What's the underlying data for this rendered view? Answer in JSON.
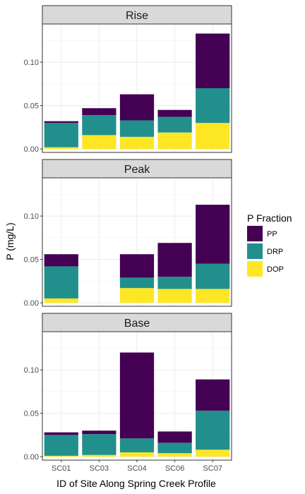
{
  "chart_data": {
    "type": "bar",
    "stacked": true,
    "xlabel": "ID of Site Along Spring Creek Profile",
    "ylabel": "P (mg/L)",
    "categories": [
      "SC01",
      "SC03",
      "SC04",
      "SC06",
      "SC07"
    ],
    "ylim": [
      -0.004,
      0.144
    ],
    "yticks": [
      0.0,
      0.05,
      0.1
    ],
    "ytick_labels": [
      "0.00",
      "0.05",
      "0.10"
    ],
    "grid": true,
    "legend": {
      "title": "P Fraction",
      "placement": "right",
      "entries": [
        "PP",
        "DRP",
        "DOP"
      ]
    },
    "colors": {
      "PP": "#440154",
      "DRP": "#21908C",
      "DOP": "#FDE725"
    },
    "stack_order_bottom_to_top": [
      "DOP",
      "DRP",
      "PP"
    ],
    "panels": [
      {
        "label": "Rise",
        "series": [
          {
            "name": "PP",
            "values": [
              0.002,
              0.008,
              0.03,
              0.008,
              0.063
            ]
          },
          {
            "name": "DRP",
            "values": [
              0.028,
              0.023,
              0.019,
              0.018,
              0.04
            ]
          },
          {
            "name": "DOP",
            "values": [
              0.002,
              0.016,
              0.014,
              0.019,
              0.03
            ]
          }
        ]
      },
      {
        "label": "Peak",
        "series": [
          {
            "name": "PP",
            "values": [
              0.014,
              null,
              0.027,
              0.039,
              0.068
            ]
          },
          {
            "name": "DRP",
            "values": [
              0.037,
              null,
              0.012,
              0.014,
              0.029
            ]
          },
          {
            "name": "DOP",
            "values": [
              0.005,
              null,
              0.017,
              0.016,
              0.016
            ]
          }
        ]
      },
      {
        "label": "Base",
        "series": [
          {
            "name": "PP",
            "values": [
              0.003,
              0.004,
              0.099,
              0.013,
              0.036
            ]
          },
          {
            "name": "DRP",
            "values": [
              0.024,
              0.024,
              0.016,
              0.012,
              0.045
            ]
          },
          {
            "name": "DOP",
            "values": [
              0.001,
              0.002,
              0.005,
              0.004,
              0.008
            ]
          }
        ]
      }
    ]
  }
}
